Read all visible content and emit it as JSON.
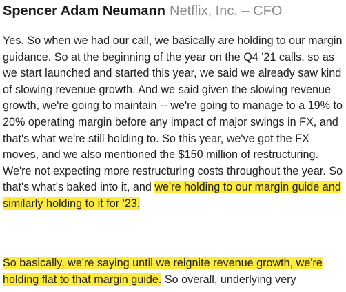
{
  "header": {
    "speaker": "Spencer Adam Neumann",
    "affiliation": "Netflix, Inc. – CFO"
  },
  "transcript": {
    "p1_plain": "Yes. So when we had our call, we basically are holding to our margin guidance. So at the beginning of the year on the Q4 '21 calls, so as we start launched and started this year, we said we already saw kind of slowing revenue growth. And we said given the slowing revenue growth, we're going to maintain -- we're going to manage to a 19% to 20% operating margin before any impact of major swings in FX, and that's what we're still holding to. So this year, we've got the FX moves, and we also mentioned the $150 million of restructuring. We're not expecting more restructuring costs throughout the year. So that's what's baked into it, and ",
    "p1_highlight": "we're holding to our margin guide and similarly holding to it for '23.",
    "p2_highlight": "So basically, we're saying until we reignite revenue growth, we're holding flat to that margin guide.",
    "p2_plain": " So overall, underlying very"
  },
  "colors": {
    "highlight": "#ffeb3b",
    "speaker": "#1a1a1a",
    "affiliation": "#8a8a8a",
    "body_text": "#222222"
  }
}
